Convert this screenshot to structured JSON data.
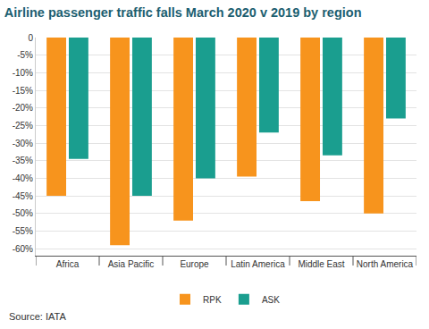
{
  "chart_data": {
    "type": "bar",
    "title": "Airline passenger traffic falls March 2020 v 2019 by region",
    "categories": [
      "Africa",
      "Asia Pacific",
      "Europe",
      "Latin America",
      "Middle East",
      "North America"
    ],
    "series": [
      {
        "name": "RPK",
        "color": "#f7941d",
        "values": [
          -45,
          -59,
          -52,
          -39.5,
          -46.5,
          -50
        ]
      },
      {
        "name": "ASK",
        "color": "#1a9e8f",
        "values": [
          -34.5,
          -45,
          -40,
          -27,
          -33.5,
          -23
        ]
      }
    ],
    "ylim": [
      -62,
      0
    ],
    "yticks": [
      0,
      {
        "value": -5,
        "label": "-5%"
      },
      {
        "value": -10,
        "label": "-10%"
      },
      {
        "value": -15,
        "label": "-15%"
      },
      {
        "value": -20,
        "label": "-20%"
      },
      {
        "value": -25,
        "label": "-25%"
      },
      {
        "value": -30,
        "label": "-30%"
      },
      {
        "value": -35,
        "label": "-35%"
      },
      {
        "value": -40,
        "label": "-40%"
      },
      {
        "value": -45,
        "label": "-45%"
      },
      {
        "value": -50,
        "label": "-50%"
      },
      {
        "value": -55,
        "label": "-55%"
      },
      {
        "value": -60,
        "label": "-60%"
      }
    ],
    "grid": true,
    "legend": "bottom",
    "annotations": [
      "Source: IATA"
    ]
  }
}
